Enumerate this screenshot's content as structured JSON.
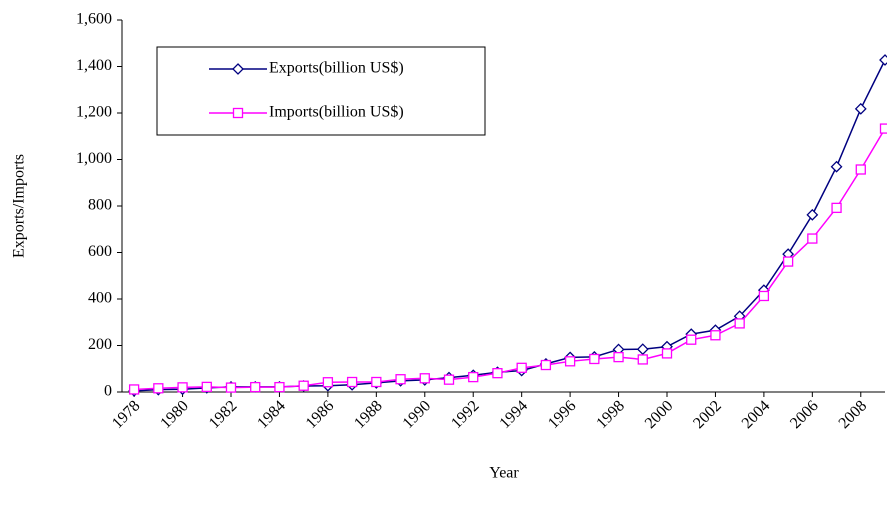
{
  "chart_data": {
    "type": "line",
    "x_label": "Year",
    "y_label": "Exports/Imports",
    "x": [
      1978,
      1979,
      1980,
      1981,
      1982,
      1983,
      1984,
      1985,
      1986,
      1987,
      1988,
      1989,
      1990,
      1991,
      1992,
      1993,
      1994,
      1995,
      1996,
      1997,
      1998,
      1999,
      2000,
      2001,
      2002,
      2003,
      2004,
      2005,
      2006,
      2007,
      2008,
      2009
    ],
    "series": [
      {
        "name": "Exports(billion US$)",
        "color": "#000080",
        "marker": "diamond",
        "values": [
          5,
          10,
          12,
          18,
          22,
          22,
          22,
          26,
          27,
          31,
          39,
          48,
          52,
          62,
          72,
          85,
          92,
          121,
          149,
          151,
          183,
          184,
          195,
          249,
          266,
          326,
          438,
          593,
          762,
          969,
          1218,
          1428
        ]
      },
      {
        "name": "Imports(billion US$)",
        "color": "#ff00ff",
        "marker": "square",
        "values": [
          11,
          16,
          20,
          22,
          19,
          21,
          21,
          27,
          42,
          43,
          43,
          55,
          59,
          53,
          64,
          81,
          104,
          116,
          132,
          142,
          150,
          140,
          166,
          225,
          244,
          295,
          413,
          561,
          660,
          792,
          957,
          1133
        ]
      }
    ],
    "xlim": [
      1977.5,
      2009
    ],
    "xticks": [
      1978,
      1980,
      1982,
      1984,
      1986,
      1988,
      1990,
      1992,
      1994,
      1996,
      1998,
      2000,
      2002,
      2004,
      2006,
      2008
    ],
    "ylim": [
      0,
      1600
    ],
    "yticks": [
      0,
      200,
      400,
      600,
      800,
      {
        "value": 1000,
        "label": "1,000"
      },
      {
        "value": 1200,
        "label": "1,200"
      },
      {
        "value": 1400,
        "label": "1,400"
      },
      {
        "value": 1600,
        "label": "1,600"
      }
    ],
    "legend": "top-left",
    "grid": false
  }
}
